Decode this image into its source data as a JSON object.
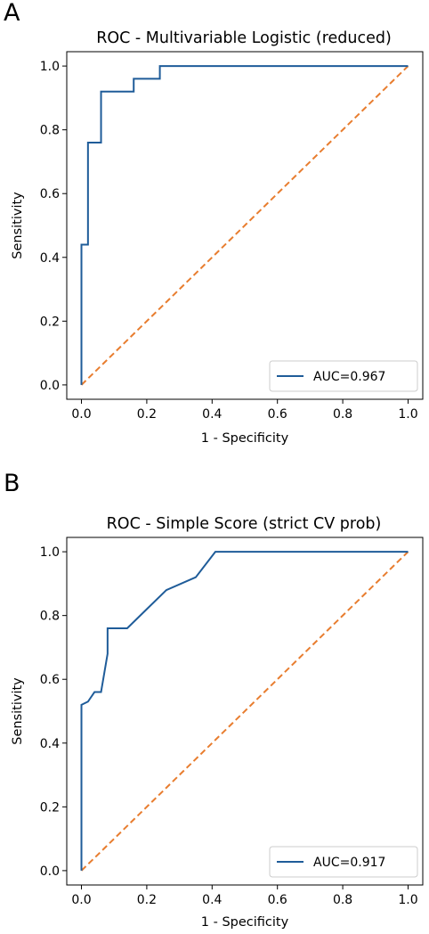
{
  "chart_data": [
    {
      "panel_label": "A",
      "type": "line",
      "title": "ROC - Multivariable Logistic (reduced)",
      "xlabel": "1 - Specificity",
      "ylabel": "Sensitivity",
      "xlim": [
        0.0,
        1.0
      ],
      "ylim": [
        0.0,
        1.0
      ],
      "xticks": [
        "0.0",
        "0.2",
        "0.4",
        "0.6",
        "0.8",
        "1.0"
      ],
      "yticks": [
        "0.0",
        "0.2",
        "0.4",
        "0.6",
        "0.8",
        "1.0"
      ],
      "grid": false,
      "legend_position": "bottom-right",
      "series": [
        {
          "name": "AUC=0.967",
          "color": "#1f5c99",
          "style": "solid",
          "x": [
            0.0,
            0.0,
            0.0,
            0.02,
            0.02,
            0.02,
            0.06,
            0.06,
            0.16,
            0.16,
            0.24,
            0.24,
            1.0
          ],
          "y": [
            0.0,
            0.16,
            0.44,
            0.44,
            0.68,
            0.76,
            0.76,
            0.92,
            0.92,
            0.96,
            0.96,
            1.0,
            1.0
          ]
        },
        {
          "color": "#e87d2f",
          "style": "dashed",
          "x": [
            0.0,
            1.0
          ],
          "y": [
            0.0,
            1.0
          ]
        }
      ]
    },
    {
      "panel_label": "B",
      "type": "line",
      "title": "ROC - Simple Score (strict CV prob)",
      "xlabel": "1 - Specificity",
      "ylabel": "Sensitivity",
      "xlim": [
        0.0,
        1.0
      ],
      "ylim": [
        0.0,
        1.0
      ],
      "xticks": [
        "0.0",
        "0.2",
        "0.4",
        "0.6",
        "0.8",
        "1.0"
      ],
      "yticks": [
        "0.0",
        "0.2",
        "0.4",
        "0.6",
        "0.8",
        "1.0"
      ],
      "grid": false,
      "legend_position": "bottom-right",
      "series": [
        {
          "name": "AUC=0.917",
          "color": "#1f5c99",
          "style": "solid",
          "x": [
            0.0,
            0.0,
            0.0,
            0.02,
            0.04,
            0.06,
            0.08,
            0.08,
            0.14,
            0.2,
            0.26,
            0.35,
            0.41,
            1.0
          ],
          "y": [
            0.0,
            0.2,
            0.52,
            0.53,
            0.56,
            0.56,
            0.68,
            0.76,
            0.76,
            0.82,
            0.88,
            0.92,
            1.0,
            1.0
          ]
        },
        {
          "color": "#e87d2f",
          "style": "dashed",
          "x": [
            0.0,
            1.0
          ],
          "y": [
            0.0,
            1.0
          ]
        }
      ]
    }
  ]
}
